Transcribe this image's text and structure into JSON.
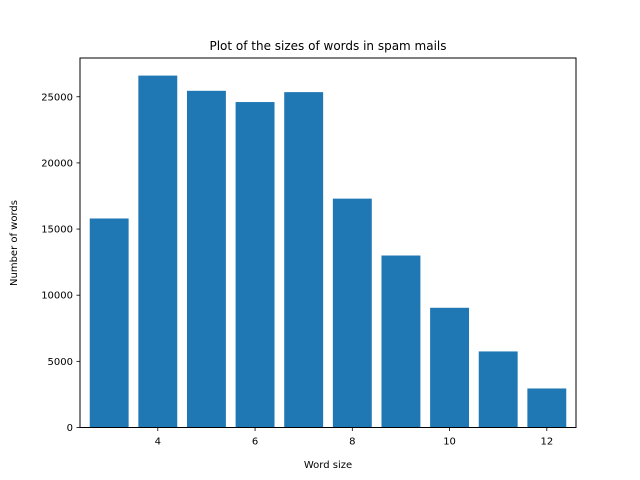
{
  "chart_data": {
    "type": "bar",
    "title": "Plot of the sizes of words in spam mails",
    "xlabel": "Word size",
    "ylabel": "Number of words",
    "x": [
      3,
      4,
      5,
      6,
      7,
      8,
      9,
      10,
      11,
      12
    ],
    "values": [
      15800,
      26600,
      25450,
      24600,
      25350,
      17300,
      13000,
      9050,
      5750,
      2950
    ],
    "bar_width": 0.8,
    "xlim": [
      2.4,
      12.6
    ],
    "ylim": [
      0,
      27930
    ],
    "xticks": [
      4,
      6,
      8,
      10,
      12
    ],
    "yticks": [
      0,
      5000,
      10000,
      15000,
      20000,
      25000
    ],
    "bar_color": "#1f77b4",
    "grid": false,
    "legend": "none"
  }
}
